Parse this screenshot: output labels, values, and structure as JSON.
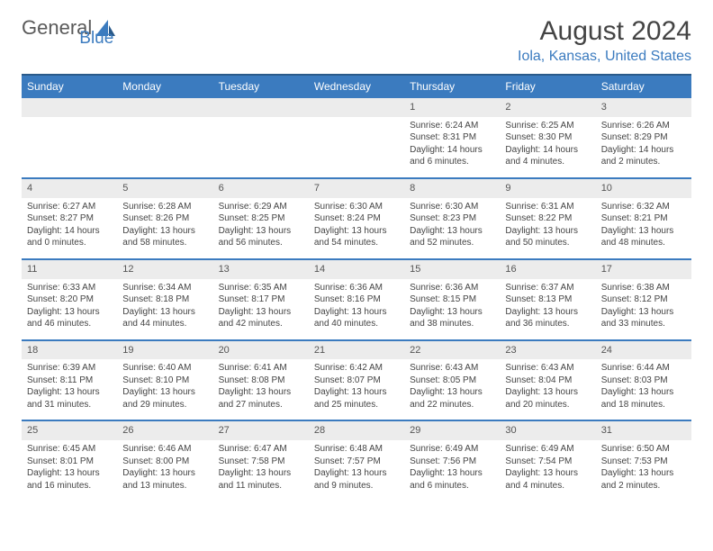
{
  "logo": {
    "text1": "General",
    "text2": "Blue"
  },
  "title": "August 2024",
  "location": "Iola, Kansas, United States",
  "colors": {
    "header_bg": "#3b7bbf",
    "header_border": "#2a5a8a",
    "daynum_bg": "#ececec",
    "cell_border": "#3b7bbf",
    "text": "#444444",
    "logo_gray": "#5a5a5a",
    "logo_blue": "#3b7bbf"
  },
  "day_headers": [
    "Sunday",
    "Monday",
    "Tuesday",
    "Wednesday",
    "Thursday",
    "Friday",
    "Saturday"
  ],
  "weeks": [
    [
      null,
      null,
      null,
      null,
      {
        "n": "1",
        "sr": "6:24 AM",
        "ss": "8:31 PM",
        "dl": "14 hours and 6 minutes."
      },
      {
        "n": "2",
        "sr": "6:25 AM",
        "ss": "8:30 PM",
        "dl": "14 hours and 4 minutes."
      },
      {
        "n": "3",
        "sr": "6:26 AM",
        "ss": "8:29 PM",
        "dl": "14 hours and 2 minutes."
      }
    ],
    [
      {
        "n": "4",
        "sr": "6:27 AM",
        "ss": "8:27 PM",
        "dl": "14 hours and 0 minutes."
      },
      {
        "n": "5",
        "sr": "6:28 AM",
        "ss": "8:26 PM",
        "dl": "13 hours and 58 minutes."
      },
      {
        "n": "6",
        "sr": "6:29 AM",
        "ss": "8:25 PM",
        "dl": "13 hours and 56 minutes."
      },
      {
        "n": "7",
        "sr": "6:30 AM",
        "ss": "8:24 PM",
        "dl": "13 hours and 54 minutes."
      },
      {
        "n": "8",
        "sr": "6:30 AM",
        "ss": "8:23 PM",
        "dl": "13 hours and 52 minutes."
      },
      {
        "n": "9",
        "sr": "6:31 AM",
        "ss": "8:22 PM",
        "dl": "13 hours and 50 minutes."
      },
      {
        "n": "10",
        "sr": "6:32 AM",
        "ss": "8:21 PM",
        "dl": "13 hours and 48 minutes."
      }
    ],
    [
      {
        "n": "11",
        "sr": "6:33 AM",
        "ss": "8:20 PM",
        "dl": "13 hours and 46 minutes."
      },
      {
        "n": "12",
        "sr": "6:34 AM",
        "ss": "8:18 PM",
        "dl": "13 hours and 44 minutes."
      },
      {
        "n": "13",
        "sr": "6:35 AM",
        "ss": "8:17 PM",
        "dl": "13 hours and 42 minutes."
      },
      {
        "n": "14",
        "sr": "6:36 AM",
        "ss": "8:16 PM",
        "dl": "13 hours and 40 minutes."
      },
      {
        "n": "15",
        "sr": "6:36 AM",
        "ss": "8:15 PM",
        "dl": "13 hours and 38 minutes."
      },
      {
        "n": "16",
        "sr": "6:37 AM",
        "ss": "8:13 PM",
        "dl": "13 hours and 36 minutes."
      },
      {
        "n": "17",
        "sr": "6:38 AM",
        "ss": "8:12 PM",
        "dl": "13 hours and 33 minutes."
      }
    ],
    [
      {
        "n": "18",
        "sr": "6:39 AM",
        "ss": "8:11 PM",
        "dl": "13 hours and 31 minutes."
      },
      {
        "n": "19",
        "sr": "6:40 AM",
        "ss": "8:10 PM",
        "dl": "13 hours and 29 minutes."
      },
      {
        "n": "20",
        "sr": "6:41 AM",
        "ss": "8:08 PM",
        "dl": "13 hours and 27 minutes."
      },
      {
        "n": "21",
        "sr": "6:42 AM",
        "ss": "8:07 PM",
        "dl": "13 hours and 25 minutes."
      },
      {
        "n": "22",
        "sr": "6:43 AM",
        "ss": "8:05 PM",
        "dl": "13 hours and 22 minutes."
      },
      {
        "n": "23",
        "sr": "6:43 AM",
        "ss": "8:04 PM",
        "dl": "13 hours and 20 minutes."
      },
      {
        "n": "24",
        "sr": "6:44 AM",
        "ss": "8:03 PM",
        "dl": "13 hours and 18 minutes."
      }
    ],
    [
      {
        "n": "25",
        "sr": "6:45 AM",
        "ss": "8:01 PM",
        "dl": "13 hours and 16 minutes."
      },
      {
        "n": "26",
        "sr": "6:46 AM",
        "ss": "8:00 PM",
        "dl": "13 hours and 13 minutes."
      },
      {
        "n": "27",
        "sr": "6:47 AM",
        "ss": "7:58 PM",
        "dl": "13 hours and 11 minutes."
      },
      {
        "n": "28",
        "sr": "6:48 AM",
        "ss": "7:57 PM",
        "dl": "13 hours and 9 minutes."
      },
      {
        "n": "29",
        "sr": "6:49 AM",
        "ss": "7:56 PM",
        "dl": "13 hours and 6 minutes."
      },
      {
        "n": "30",
        "sr": "6:49 AM",
        "ss": "7:54 PM",
        "dl": "13 hours and 4 minutes."
      },
      {
        "n": "31",
        "sr": "6:50 AM",
        "ss": "7:53 PM",
        "dl": "13 hours and 2 minutes."
      }
    ]
  ],
  "labels": {
    "sunrise": "Sunrise:",
    "sunset": "Sunset:",
    "daylight": "Daylight:"
  }
}
